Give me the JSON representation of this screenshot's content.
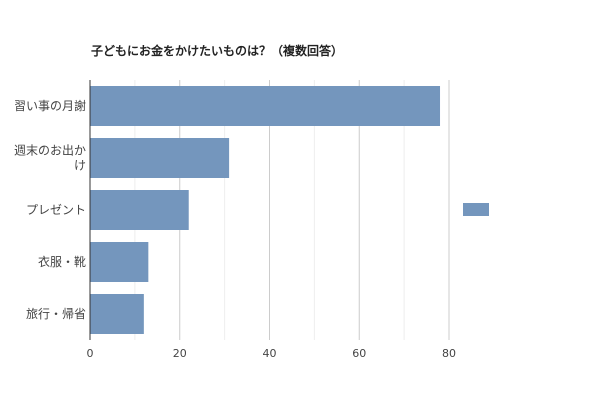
{
  "chart_data": {
    "type": "bar",
    "orientation": "horizontal",
    "title": "子どもにお金をかけたいものは？（複数回答）",
    "categories": [
      [
        "習い事の月謝"
      ],
      [
        "週末のお出か",
        "け"
      ],
      [
        "プレゼント"
      ],
      [
        "衣服・靴"
      ],
      [
        "旅行・帰省"
      ]
    ],
    "values": [
      78,
      31,
      22,
      13,
      12
    ],
    "xlim": [
      0,
      80
    ],
    "xticks": [
      "0",
      "20",
      "40",
      "60",
      "80"
    ],
    "grid": true,
    "legend": "right",
    "bar_color": "#7496bd"
  }
}
